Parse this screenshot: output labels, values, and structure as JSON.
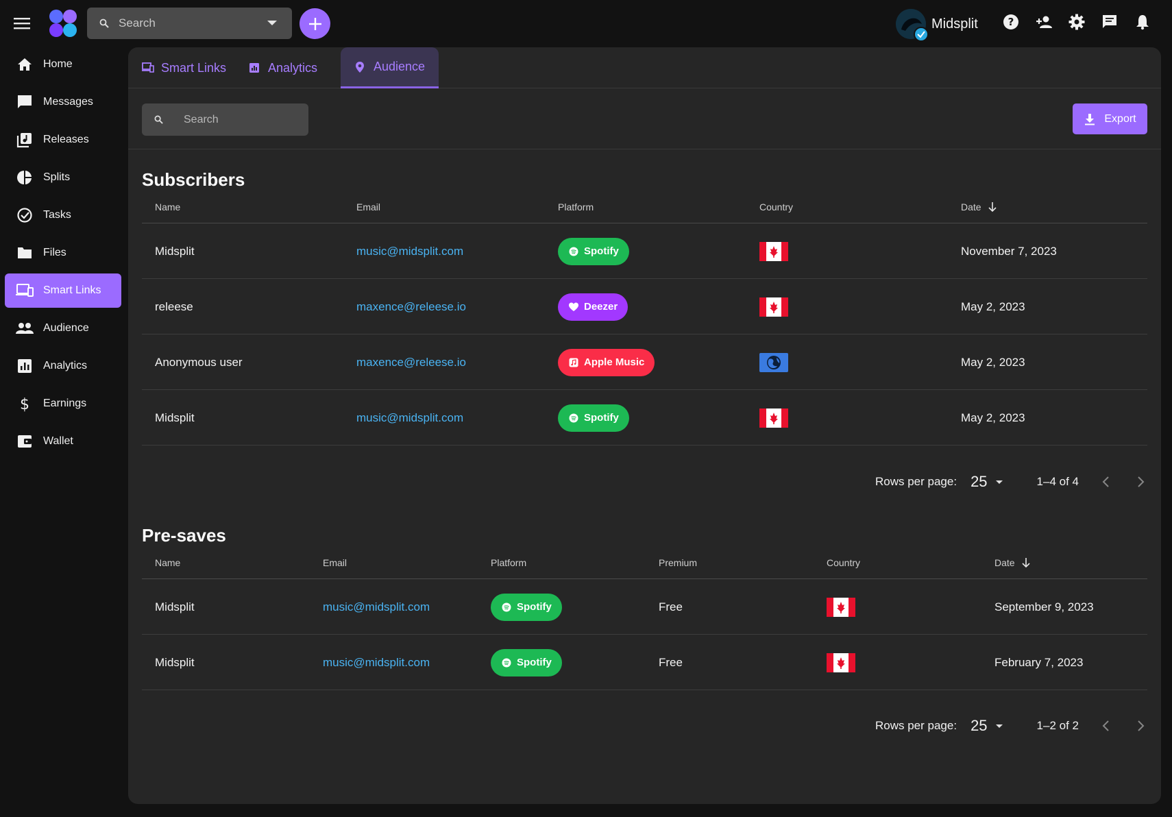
{
  "header": {
    "search_placeholder": "Search",
    "username": "Midsplit"
  },
  "sidebar": {
    "items": [
      {
        "label": "Home",
        "icon": "home-icon"
      },
      {
        "label": "Messages",
        "icon": "message-icon"
      },
      {
        "label": "Releases",
        "icon": "music-library-icon"
      },
      {
        "label": "Splits",
        "icon": "pie-chart-icon"
      },
      {
        "label": "Tasks",
        "icon": "check-circle-icon"
      },
      {
        "label": "Files",
        "icon": "folder-icon"
      },
      {
        "label": "Smart Links",
        "icon": "devices-icon",
        "active": true
      },
      {
        "label": "Audience",
        "icon": "people-icon"
      },
      {
        "label": "Analytics",
        "icon": "bar-chart-icon"
      },
      {
        "label": "Earnings",
        "icon": "dollar-icon"
      },
      {
        "label": "Wallet",
        "icon": "wallet-icon"
      }
    ]
  },
  "tabs": [
    {
      "label": "Smart Links",
      "icon": "devices-icon"
    },
    {
      "label": "Analytics",
      "icon": "bar-chart-icon"
    },
    {
      "label": "Audience",
      "icon": "location-pin-icon",
      "active": true
    }
  ],
  "toolbar": {
    "search_placeholder": "Search",
    "export_label": "Export"
  },
  "subscribers": {
    "title": "Subscribers",
    "columns": [
      "Name",
      "Email",
      "Platform",
      "Country",
      "Date"
    ],
    "rows": [
      {
        "name": "Midsplit",
        "email": "music@midsplit.com",
        "platform": "Spotify",
        "platform_color": "#1db954",
        "country": "canada",
        "date": "November 7, 2023"
      },
      {
        "name": "releese",
        "email": "maxence@releese.io",
        "platform": "Deezer",
        "platform_color": "#a238ff",
        "country": "canada",
        "date": "May 2, 2023"
      },
      {
        "name": "Anonymous user",
        "email": "maxence@releese.io",
        "platform": "Apple Music",
        "platform_color": "#fa2d48",
        "country": "globe",
        "date": "May 2, 2023"
      },
      {
        "name": "Midsplit",
        "email": "music@midsplit.com",
        "platform": "Spotify",
        "platform_color": "#1db954",
        "country": "canada",
        "date": "May 2, 2023"
      }
    ],
    "pager": {
      "rows_label": "Rows per page:",
      "rows_value": "25",
      "range": "1–4 of 4"
    }
  },
  "presaves": {
    "title": "Pre-saves",
    "columns": [
      "Name",
      "Email",
      "Platform",
      "Premium",
      "Country",
      "Date"
    ],
    "rows": [
      {
        "name": "Midsplit",
        "email": "music@midsplit.com",
        "platform": "Spotify",
        "platform_color": "#1db954",
        "premium": "Free",
        "country": "canada",
        "date": "September 9, 2023"
      },
      {
        "name": "Midsplit",
        "email": "music@midsplit.com",
        "platform": "Spotify",
        "platform_color": "#1db954",
        "premium": "Free",
        "country": "canada",
        "date": "February 7, 2023"
      }
    ],
    "pager": {
      "rows_label": "Rows per page:",
      "rows_value": "25",
      "range": "1–2 of 2"
    }
  },
  "colors": {
    "accent": "#9b6bff",
    "link": "#4ab3f2",
    "panel": "#262626"
  }
}
